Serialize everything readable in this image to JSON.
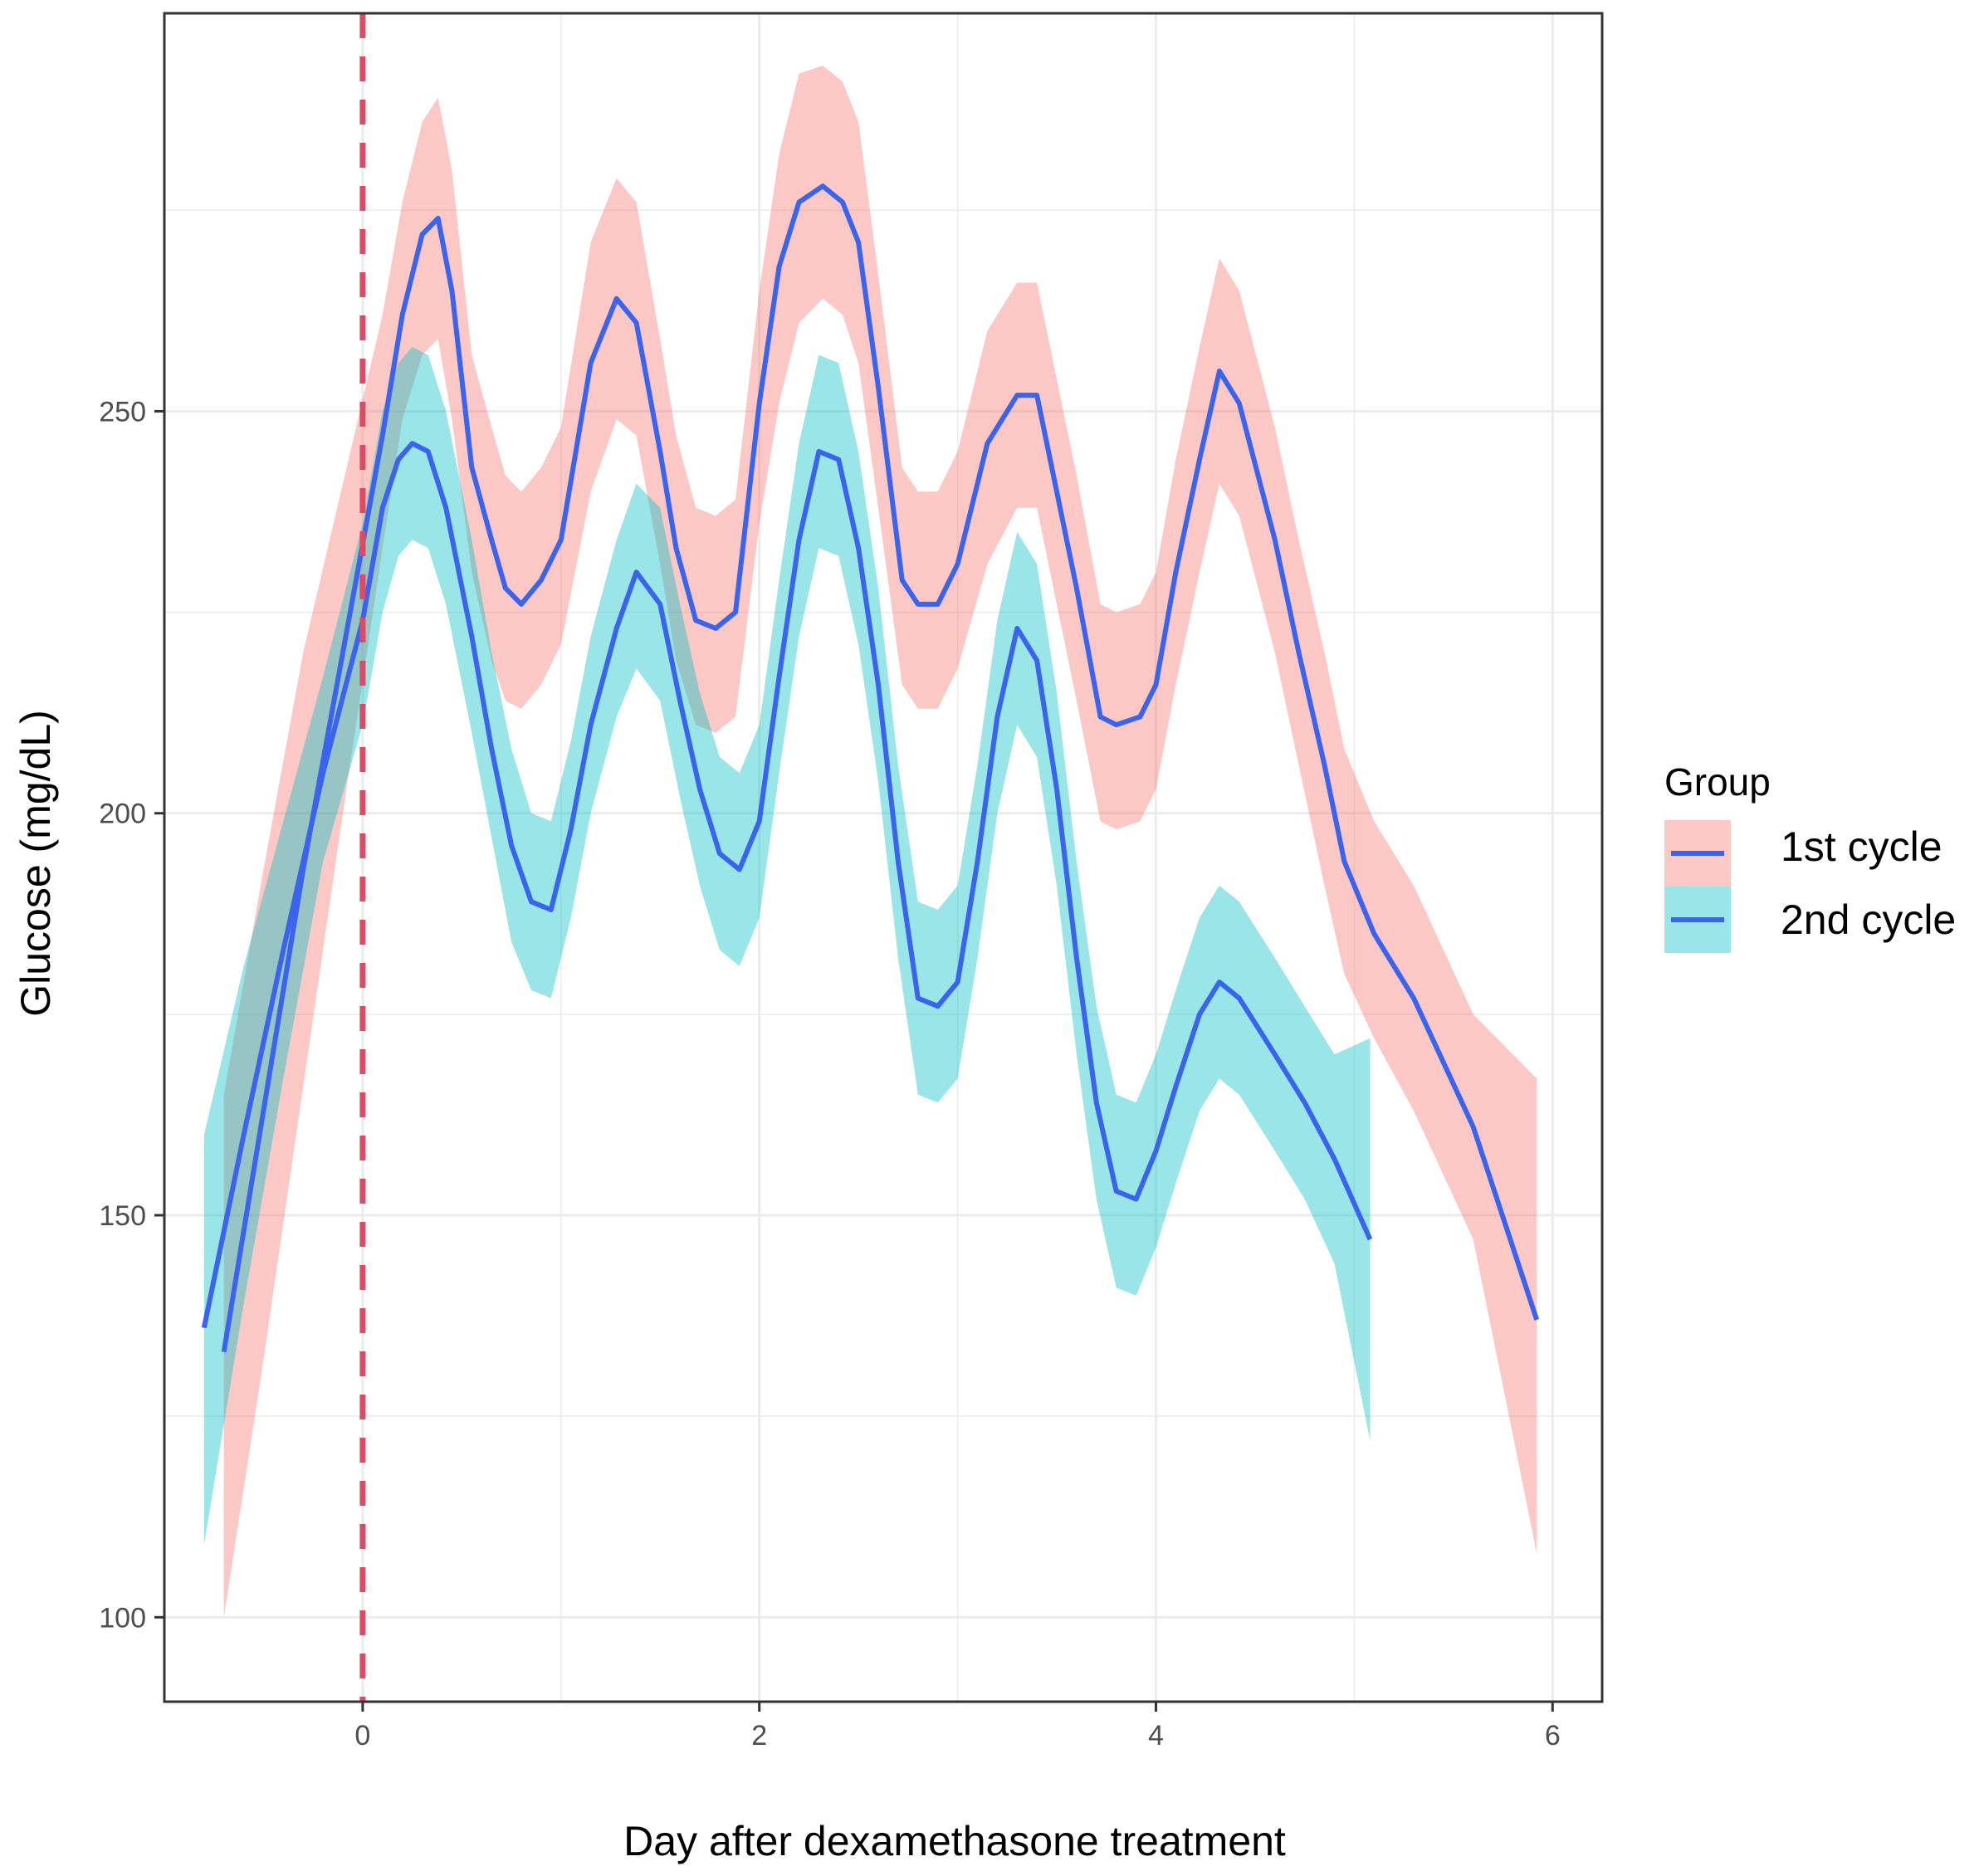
{
  "chart_data": {
    "type": "line",
    "title": "",
    "xlabel": "Day after dexamethasone treatment",
    "ylabel": "Glucose (mg/dL)",
    "xlim": [
      -1.0,
      6.25
    ],
    "ylim": [
      89.5,
      299.5
    ],
    "x_ticks": [
      0,
      2,
      4,
      6
    ],
    "y_ticks": [
      100,
      150,
      200,
      250
    ],
    "x_minor": [
      -1,
      1,
      3,
      5
    ],
    "y_minor": [
      125,
      175,
      225,
      275
    ],
    "grid": true,
    "reference_line": {
      "x": 0,
      "style": "dashed",
      "color": "#dc4a63"
    },
    "legend": {
      "title": "Group",
      "position": "right",
      "entries": [
        "1st cycle",
        "2nd cycle"
      ]
    },
    "colors": {
      "line": "#3a63ee",
      "band_1st": "#f8766d",
      "band_2nd": "#00bfc4",
      "grid": "#ebebeb",
      "panel_border": "#333333"
    },
    "series": [
      {
        "name": "1st cycle",
        "x": [
          -0.7,
          -0.5,
          -0.3,
          -0.1,
          0.1,
          0.2,
          0.3,
          0.38,
          0.45,
          0.55,
          0.65,
          0.72,
          0.8,
          0.9,
          1.0,
          1.15,
          1.28,
          1.38,
          1.5,
          1.58,
          1.68,
          1.78,
          1.88,
          2.0,
          2.1,
          2.2,
          2.32,
          2.42,
          2.5,
          2.6,
          2.72,
          2.8,
          2.9,
          3.0,
          3.15,
          3.3,
          3.4,
          3.5,
          3.6,
          3.72,
          3.8,
          3.92,
          4.0,
          4.1,
          4.22,
          4.32,
          4.42,
          4.6,
          4.72,
          4.85,
          4.95,
          5.1,
          5.3,
          5.6,
          5.92
        ],
        "values": [
          133,
          163,
          193,
          220,
          247,
          262,
          272,
          274,
          265,
          243,
          234,
          228,
          226,
          229,
          234,
          256,
          264,
          261,
          245,
          233,
          224,
          223,
          225,
          251,
          268,
          276,
          278,
          276,
          271,
          253,
          229,
          226,
          226,
          231,
          246,
          252,
          252,
          240,
          228,
          212,
          211,
          212,
          216,
          230,
          244,
          255,
          251,
          234,
          220,
          206,
          194,
          185,
          177,
          161,
          137
        ],
        "lower": [
          100,
          132,
          166,
          200,
          233,
          249,
          257,
          259,
          249,
          230,
          219,
          214,
          213,
          216,
          221,
          240,
          249,
          247,
          231,
          219,
          211,
          210,
          212,
          236,
          251,
          261,
          264,
          262,
          256,
          238,
          216,
          213,
          213,
          218,
          231,
          238,
          238,
          226,
          214,
          199,
          198,
          199,
          203,
          216,
          230,
          241,
          237,
          220,
          206,
          191,
          180,
          172,
          163,
          147,
          108
        ],
        "upper": [
          165,
          193,
          220,
          241,
          262,
          276,
          286,
          289,
          280,
          257,
          248,
          242,
          240,
          243,
          248,
          271,
          279,
          276,
          259,
          247,
          238,
          237,
          239,
          265,
          282,
          292,
          293,
          291,
          286,
          267,
          243,
          240,
          240,
          245,
          260,
          266,
          266,
          254,
          242,
          226,
          225,
          226,
          230,
          244,
          258,
          269,
          265,
          248,
          234,
          220,
          208,
          199,
          191,
          175,
          167
        ]
      },
      {
        "name": "2nd cycle",
        "x": [
          -0.8,
          -0.6,
          -0.4,
          -0.2,
          0.0,
          0.1,
          0.18,
          0.25,
          0.33,
          0.42,
          0.55,
          0.65,
          0.75,
          0.85,
          0.95,
          1.05,
          1.15,
          1.28,
          1.38,
          1.5,
          1.6,
          1.7,
          1.8,
          1.9,
          2.0,
          2.1,
          2.2,
          2.3,
          2.4,
          2.5,
          2.6,
          2.7,
          2.8,
          2.9,
          3.0,
          3.1,
          3.2,
          3.3,
          3.4,
          3.5,
          3.6,
          3.7,
          3.8,
          3.9,
          4.0,
          4.1,
          4.22,
          4.32,
          4.42,
          4.6,
          4.75,
          4.9,
          5.08
        ],
        "values": [
          136,
          160,
          183,
          205,
          224,
          238,
          244,
          246,
          245,
          238,
          222,
          208,
          196,
          189,
          188,
          198,
          211,
          223,
          230,
          226,
          214,
          203,
          195,
          193,
          199,
          217,
          234,
          245,
          244,
          233,
          216,
          194,
          177,
          176,
          179,
          194,
          212,
          223,
          219,
          203,
          182,
          164,
          153,
          152,
          158,
          166,
          175,
          179,
          177,
          170,
          164,
          157,
          147
        ],
        "lower": [
          109,
          139,
          167,
          194,
          211,
          225,
          232,
          234,
          233,
          226,
          210,
          197,
          184,
          178,
          177,
          187,
          200,
          212,
          218,
          214,
          202,
          191,
          183,
          181,
          187,
          205,
          222,
          233,
          232,
          221,
          204,
          182,
          165,
          164,
          167,
          182,
          200,
          211,
          207,
          191,
          170,
          152,
          141,
          140,
          146,
          154,
          163,
          167,
          165,
          158,
          152,
          144,
          122
        ],
        "upper": [
          160,
          181,
          199,
          217,
          236,
          250,
          256,
          258,
          257,
          250,
          234,
          220,
          208,
          200,
          199,
          209,
          222,
          234,
          241,
          238,
          226,
          215,
          207,
          205,
          211,
          229,
          246,
          257,
          256,
          245,
          228,
          206,
          189,
          188,
          191,
          206,
          224,
          235,
          231,
          215,
          194,
          176,
          165,
          164,
          170,
          178,
          187,
          191,
          189,
          182,
          176,
          170,
          172
        ]
      }
    ]
  }
}
